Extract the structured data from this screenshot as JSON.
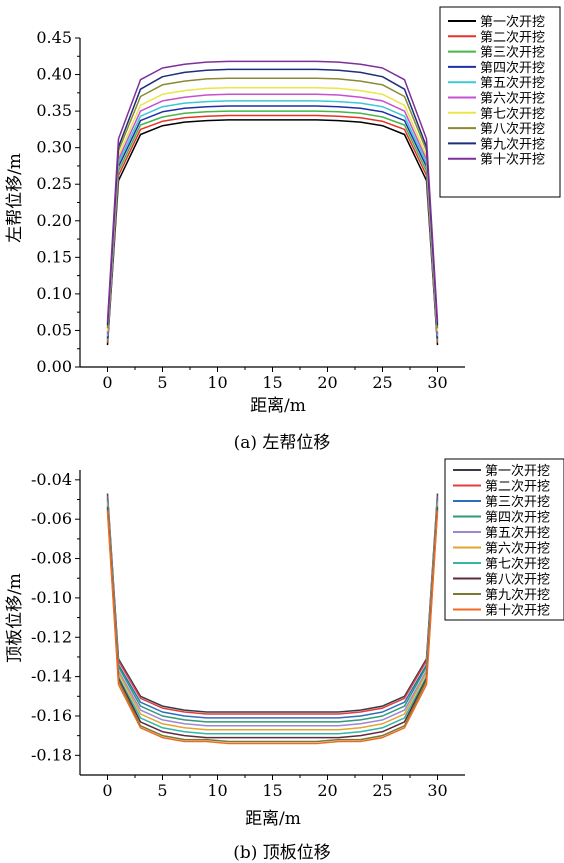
{
  "chart_data": [
    {
      "type": "line",
      "panel_caption": "(a) 左帮位移",
      "xlabel": "距离/m",
      "ylabel": "左帮位移/m",
      "xlim": [
        -2.5,
        32.5
      ],
      "ylim": [
        0.0,
        0.45
      ],
      "xticks": [
        "0",
        "5",
        "10",
        "15",
        "20",
        "25",
        "30"
      ],
      "yticks": [
        "0.00",
        "0.05",
        "0.10",
        "0.15",
        "0.20",
        "0.25",
        "0.30",
        "0.35",
        "0.40",
        "0.45"
      ],
      "legend_position": "top-right",
      "x": [
        0,
        1,
        3,
        5,
        7,
        9,
        11,
        13,
        15,
        17,
        19,
        21,
        23,
        25,
        27,
        29,
        30
      ],
      "series": [
        {
          "name": "第一次开挖",
          "color": "#000000",
          "values": [
            0.03,
            0.255,
            0.318,
            0.33,
            0.335,
            0.337,
            0.338,
            0.338,
            0.338,
            0.338,
            0.338,
            0.337,
            0.335,
            0.33,
            0.318,
            0.255,
            0.03
          ]
        },
        {
          "name": "第二次开挖",
          "color": "#e8312a",
          "values": [
            0.033,
            0.262,
            0.325,
            0.336,
            0.341,
            0.343,
            0.344,
            0.344,
            0.344,
            0.344,
            0.344,
            0.343,
            0.341,
            0.336,
            0.325,
            0.262,
            0.033
          ]
        },
        {
          "name": "第三次开挖",
          "color": "#45b648",
          "values": [
            0.036,
            0.268,
            0.331,
            0.342,
            0.347,
            0.349,
            0.35,
            0.35,
            0.35,
            0.35,
            0.35,
            0.349,
            0.347,
            0.342,
            0.331,
            0.268,
            0.036
          ]
        },
        {
          "name": "第四次开挖",
          "color": "#1f2fa8",
          "values": [
            0.039,
            0.274,
            0.337,
            0.349,
            0.354,
            0.356,
            0.357,
            0.357,
            0.357,
            0.357,
            0.357,
            0.356,
            0.354,
            0.349,
            0.337,
            0.274,
            0.039
          ]
        },
        {
          "name": "第五次开挖",
          "color": "#3cc8d6",
          "values": [
            0.042,
            0.279,
            0.343,
            0.356,
            0.361,
            0.363,
            0.364,
            0.364,
            0.364,
            0.364,
            0.364,
            0.363,
            0.361,
            0.356,
            0.343,
            0.279,
            0.042
          ]
        },
        {
          "name": "第六次开挖",
          "color": "#c850d0",
          "values": [
            0.045,
            0.284,
            0.35,
            0.364,
            0.369,
            0.372,
            0.373,
            0.373,
            0.373,
            0.373,
            0.373,
            0.372,
            0.369,
            0.364,
            0.35,
            0.284,
            0.045
          ]
        },
        {
          "name": "第七次开挖",
          "color": "#e8e64a",
          "values": [
            0.049,
            0.289,
            0.358,
            0.373,
            0.378,
            0.381,
            0.382,
            0.382,
            0.382,
            0.382,
            0.382,
            0.381,
            0.378,
            0.373,
            0.358,
            0.289,
            0.049
          ]
        },
        {
          "name": "第八次开挖",
          "color": "#8a8a32",
          "values": [
            0.053,
            0.296,
            0.37,
            0.386,
            0.391,
            0.394,
            0.395,
            0.395,
            0.395,
            0.395,
            0.395,
            0.394,
            0.391,
            0.386,
            0.37,
            0.296,
            0.053
          ]
        },
        {
          "name": "第九次开挖",
          "color": "#1e2f7a",
          "values": [
            0.057,
            0.301,
            0.38,
            0.397,
            0.403,
            0.406,
            0.407,
            0.407,
            0.407,
            0.407,
            0.407,
            0.406,
            0.403,
            0.397,
            0.38,
            0.301,
            0.057
          ]
        },
        {
          "name": "第十次开挖",
          "color": "#7e2f9a",
          "values": [
            0.062,
            0.312,
            0.393,
            0.409,
            0.414,
            0.417,
            0.418,
            0.418,
            0.418,
            0.418,
            0.418,
            0.417,
            0.414,
            0.409,
            0.393,
            0.312,
            0.062
          ]
        }
      ]
    },
    {
      "type": "line",
      "panel_caption": "(b) 顶板位移",
      "xlabel": "距离/m",
      "ylabel": "顶板位移/m",
      "xlim": [
        -2.5,
        32.5
      ],
      "ylim": [
        -0.19,
        -0.035
      ],
      "xticks": [
        "0",
        "5",
        "10",
        "15",
        "20",
        "25",
        "30"
      ],
      "yticks": [
        "-0.04",
        "-0.06",
        "-0.08",
        "-0.10",
        "-0.12",
        "-0.14",
        "-0.16",
        "-0.18"
      ],
      "legend_position": "top-right",
      "x": [
        0,
        1,
        3,
        5,
        7,
        9,
        11,
        13,
        15,
        17,
        19,
        21,
        23,
        25,
        27,
        29,
        30
      ],
      "series": [
        {
          "name": "第一次开挖",
          "color": "#3a3a46",
          "values": [
            -0.047,
            -0.131,
            -0.15,
            -0.155,
            -0.157,
            -0.158,
            -0.158,
            -0.158,
            -0.158,
            -0.158,
            -0.158,
            -0.158,
            -0.157,
            -0.155,
            -0.15,
            -0.131,
            -0.047
          ]
        },
        {
          "name": "第二次开挖",
          "color": "#e23c3c",
          "values": [
            -0.048,
            -0.132,
            -0.151,
            -0.156,
            -0.158,
            -0.159,
            -0.159,
            -0.159,
            -0.159,
            -0.159,
            -0.159,
            -0.159,
            -0.158,
            -0.156,
            -0.151,
            -0.132,
            -0.048
          ]
        },
        {
          "name": "第三次开挖",
          "color": "#2f6eb8",
          "values": [
            -0.049,
            -0.134,
            -0.153,
            -0.158,
            -0.16,
            -0.161,
            -0.161,
            -0.161,
            -0.161,
            -0.161,
            -0.161,
            -0.161,
            -0.16,
            -0.158,
            -0.153,
            -0.134,
            -0.049
          ]
        },
        {
          "name": "第四次开挖",
          "color": "#2e9a7a",
          "values": [
            -0.05,
            -0.135,
            -0.155,
            -0.16,
            -0.162,
            -0.163,
            -0.163,
            -0.163,
            -0.163,
            -0.163,
            -0.163,
            -0.163,
            -0.162,
            -0.16,
            -0.155,
            -0.135,
            -0.05
          ]
        },
        {
          "name": "第五次开挖",
          "color": "#9f86d4",
          "values": [
            -0.051,
            -0.137,
            -0.157,
            -0.162,
            -0.164,
            -0.165,
            -0.165,
            -0.165,
            -0.165,
            -0.165,
            -0.165,
            -0.165,
            -0.164,
            -0.162,
            -0.157,
            -0.137,
            -0.051
          ]
        },
        {
          "name": "第六次开挖",
          "color": "#e0a630",
          "values": [
            -0.052,
            -0.138,
            -0.159,
            -0.164,
            -0.166,
            -0.167,
            -0.167,
            -0.167,
            -0.167,
            -0.167,
            -0.167,
            -0.167,
            -0.166,
            -0.164,
            -0.159,
            -0.138,
            -0.052
          ]
        },
        {
          "name": "第七次开挖",
          "color": "#33b5a8",
          "values": [
            -0.053,
            -0.14,
            -0.161,
            -0.166,
            -0.168,
            -0.169,
            -0.169,
            -0.169,
            -0.169,
            -0.169,
            -0.169,
            -0.169,
            -0.168,
            -0.166,
            -0.161,
            -0.14,
            -0.053
          ]
        },
        {
          "name": "第八次开挖",
          "color": "#5e2a3e",
          "values": [
            -0.054,
            -0.141,
            -0.163,
            -0.168,
            -0.17,
            -0.171,
            -0.171,
            -0.171,
            -0.171,
            -0.171,
            -0.171,
            -0.171,
            -0.17,
            -0.168,
            -0.163,
            -0.141,
            -0.054
          ]
        },
        {
          "name": "第九次开挖",
          "color": "#7a7a2e",
          "values": [
            -0.055,
            -0.142,
            -0.165,
            -0.17,
            -0.172,
            -0.172,
            -0.173,
            -0.173,
            -0.173,
            -0.173,
            -0.173,
            -0.172,
            -0.172,
            -0.17,
            -0.165,
            -0.142,
            -0.055
          ]
        },
        {
          "name": "第十次开挖",
          "color": "#f06a24",
          "values": [
            -0.056,
            -0.144,
            -0.166,
            -0.171,
            -0.173,
            -0.173,
            -0.174,
            -0.174,
            -0.174,
            -0.174,
            -0.174,
            -0.173,
            -0.173,
            -0.171,
            -0.166,
            -0.144,
            -0.056
          ]
        }
      ]
    }
  ]
}
